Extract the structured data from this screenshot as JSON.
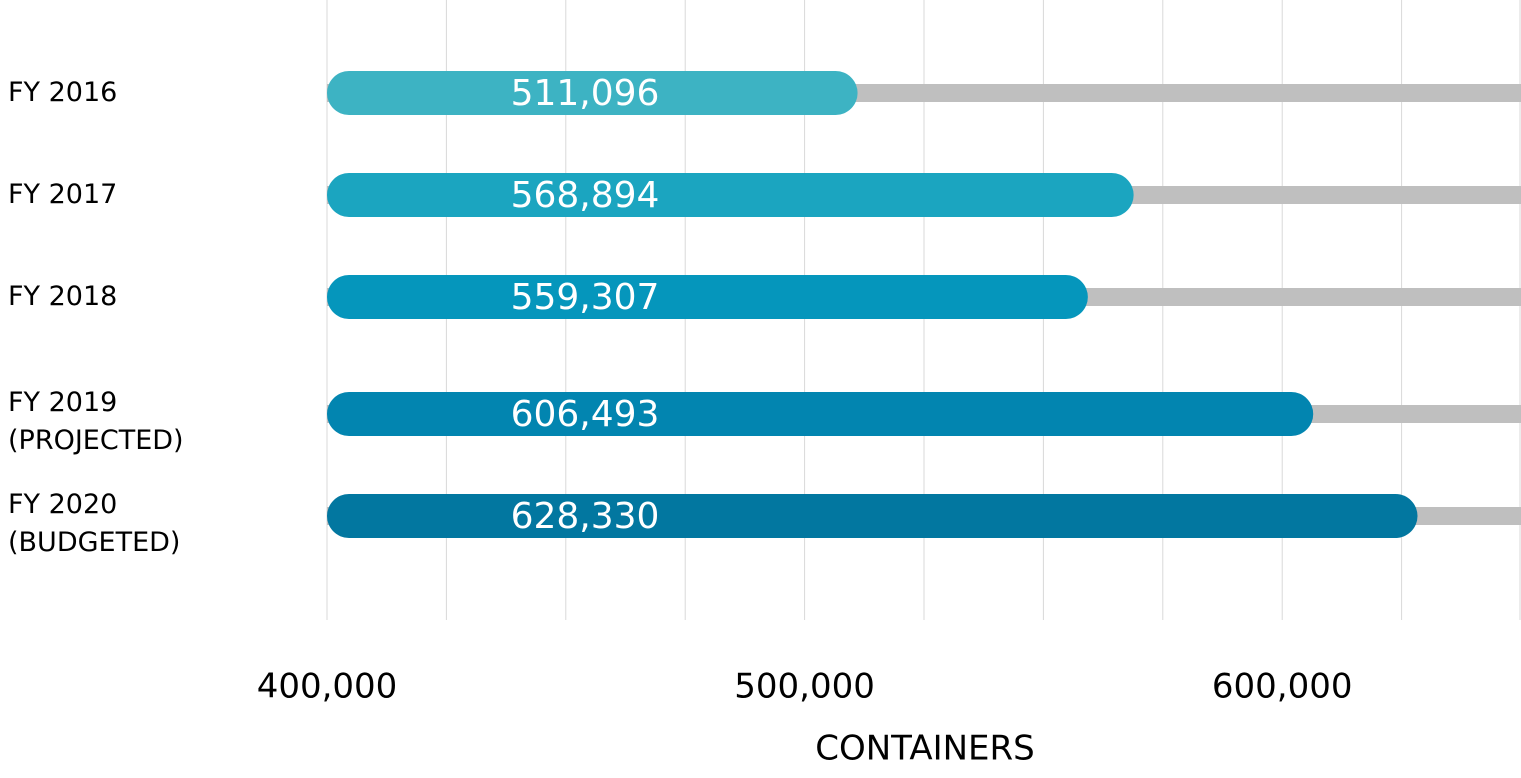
{
  "chart_data": {
    "type": "bar",
    "orientation": "horizontal",
    "categories": [
      "FY 2016",
      "FY 2017",
      "FY 2018",
      "FY 2019\n(PROJECTED)",
      "FY 2020\n(BUDGETED)"
    ],
    "values": [
      511096,
      568894,
      559307,
      606493,
      628330
    ],
    "value_labels": [
      "511,096",
      "568,894",
      "559,307",
      "606,493",
      "628,330"
    ],
    "colors": [
      "#3db3c3",
      "#1ba5c0",
      "#0596bc",
      "#0285b0",
      "#0277a0"
    ],
    "track_color": "#bfbfbf",
    "xlim": [
      400000,
      650000
    ],
    "xticks": [
      {
        "value": 400000,
        "label": "400,000"
      },
      {
        "value": 500000,
        "label": "500,000"
      },
      {
        "value": 600000,
        "label": "600,000"
      }
    ],
    "xgrid": [
      400000,
      425000,
      450000,
      475000,
      500000,
      525000,
      550000,
      575000,
      600000,
      625000,
      650000
    ],
    "xlabel": "CONTAINERS",
    "grid": true
  }
}
